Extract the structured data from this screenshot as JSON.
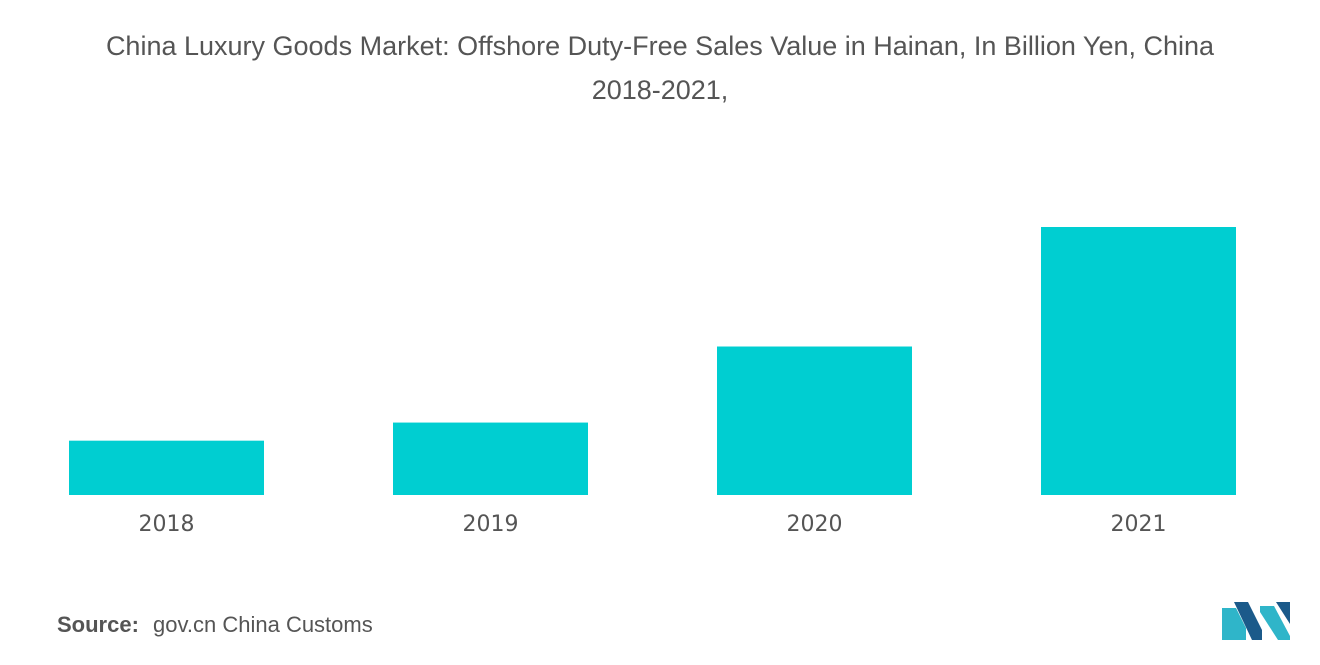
{
  "title_line1": "China Luxury Goods Market: Offshore Duty-Free Sales Value in Hainan, In Billion Yen, China",
  "title_line2": "2018-2021,",
  "source_label": "Source:",
  "source_value": "gov.cn China Customs",
  "colors": {
    "bar": "#00CED1",
    "text": "#555555"
  },
  "chart_data": {
    "type": "bar",
    "categories": [
      "2018",
      "2019",
      "2020",
      "2021"
    ],
    "values": [
      15,
      20,
      41,
      74
    ],
    "ylim": [
      0,
      74
    ],
    "title": "China Luxury Goods Market: Offshore Duty-Free Sales Value in Hainan, In Billion Yen, China 2018-2021,",
    "xlabel": "",
    "ylabel": "",
    "grid": false
  }
}
